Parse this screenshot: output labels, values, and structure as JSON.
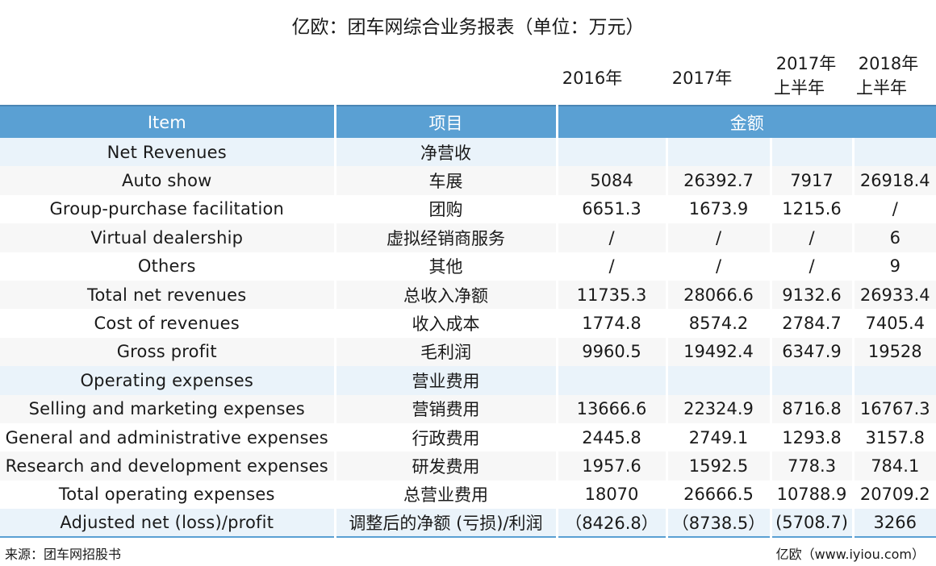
{
  "title": "亿欧：团车网综合业务报表（单位：万元）",
  "years": [
    {
      "line1": "2016年",
      "line2": ""
    },
    {
      "line1": "2017年",
      "line2": ""
    },
    {
      "line1": "2017年",
      "line2": "上半年"
    },
    {
      "line1": "2018年",
      "line2": "上半年"
    }
  ],
  "header": {
    "item": "Item",
    "project": "项目",
    "amount": "金额"
  },
  "rows": [
    {
      "item": "Net Revenues",
      "cn": "净营收",
      "v": [
        "",
        "",
        "",
        ""
      ]
    },
    {
      "item": "Auto show",
      "cn": "车展",
      "v": [
        "5084",
        "26392.7",
        "7917",
        "26918.4"
      ]
    },
    {
      "item": "Group-purchase facilitation",
      "cn": "团购",
      "v": [
        "6651.3",
        "1673.9",
        "1215.6",
        "/"
      ]
    },
    {
      "item": "Virtual dealership",
      "cn": "虚拟经销商服务",
      "v": [
        "/",
        "/",
        "/",
        "6"
      ]
    },
    {
      "item": "Others",
      "cn": "其他",
      "v": [
        "/",
        "/",
        "/",
        "9"
      ]
    },
    {
      "item": "Total net revenues",
      "cn": "总收入净额",
      "v": [
        "11735.3",
        "28066.6",
        "9132.6",
        "26933.4"
      ]
    },
    {
      "item": "Cost of revenues",
      "cn": "收入成本",
      "v": [
        "1774.8",
        "8574.2",
        "2784.7",
        "7405.4"
      ]
    },
    {
      "item": "Gross profit",
      "cn": "毛利润",
      "v": [
        "9960.5",
        "19492.4",
        "6347.9",
        "19528"
      ]
    },
    {
      "item": "Operating expenses",
      "cn": "营业费用",
      "v": [
        "",
        "",
        "",
        ""
      ]
    },
    {
      "item": "Selling and marketing expenses",
      "cn": "营销费用",
      "v": [
        "13666.6",
        "22324.9",
        "8716.8",
        "16767.3"
      ]
    },
    {
      "item": "General and administrative expenses",
      "cn": "行政费用",
      "v": [
        "2445.8",
        "2749.1",
        "1293.8",
        "3157.8"
      ]
    },
    {
      "item": "Research and development expenses",
      "cn": "研发费用",
      "v": [
        "1957.6",
        "1592.5",
        "778.3",
        "784.1"
      ]
    },
    {
      "item": "Total operating expenses",
      "cn": "总营业费用",
      "v": [
        "18070",
        "26666.5",
        "10788.9",
        "20709.2"
      ]
    },
    {
      "item": "Adjusted net (loss)/profit",
      "cn": "调整后的净额 (亏损)/利润",
      "v": [
        "（8426.8）",
        "（8738.5）",
        "(5708.7)",
        "3266"
      ]
    }
  ],
  "footer": {
    "source": "来源：团车网招股书",
    "brand": "亿欧（www.iyiou.com）"
  }
}
